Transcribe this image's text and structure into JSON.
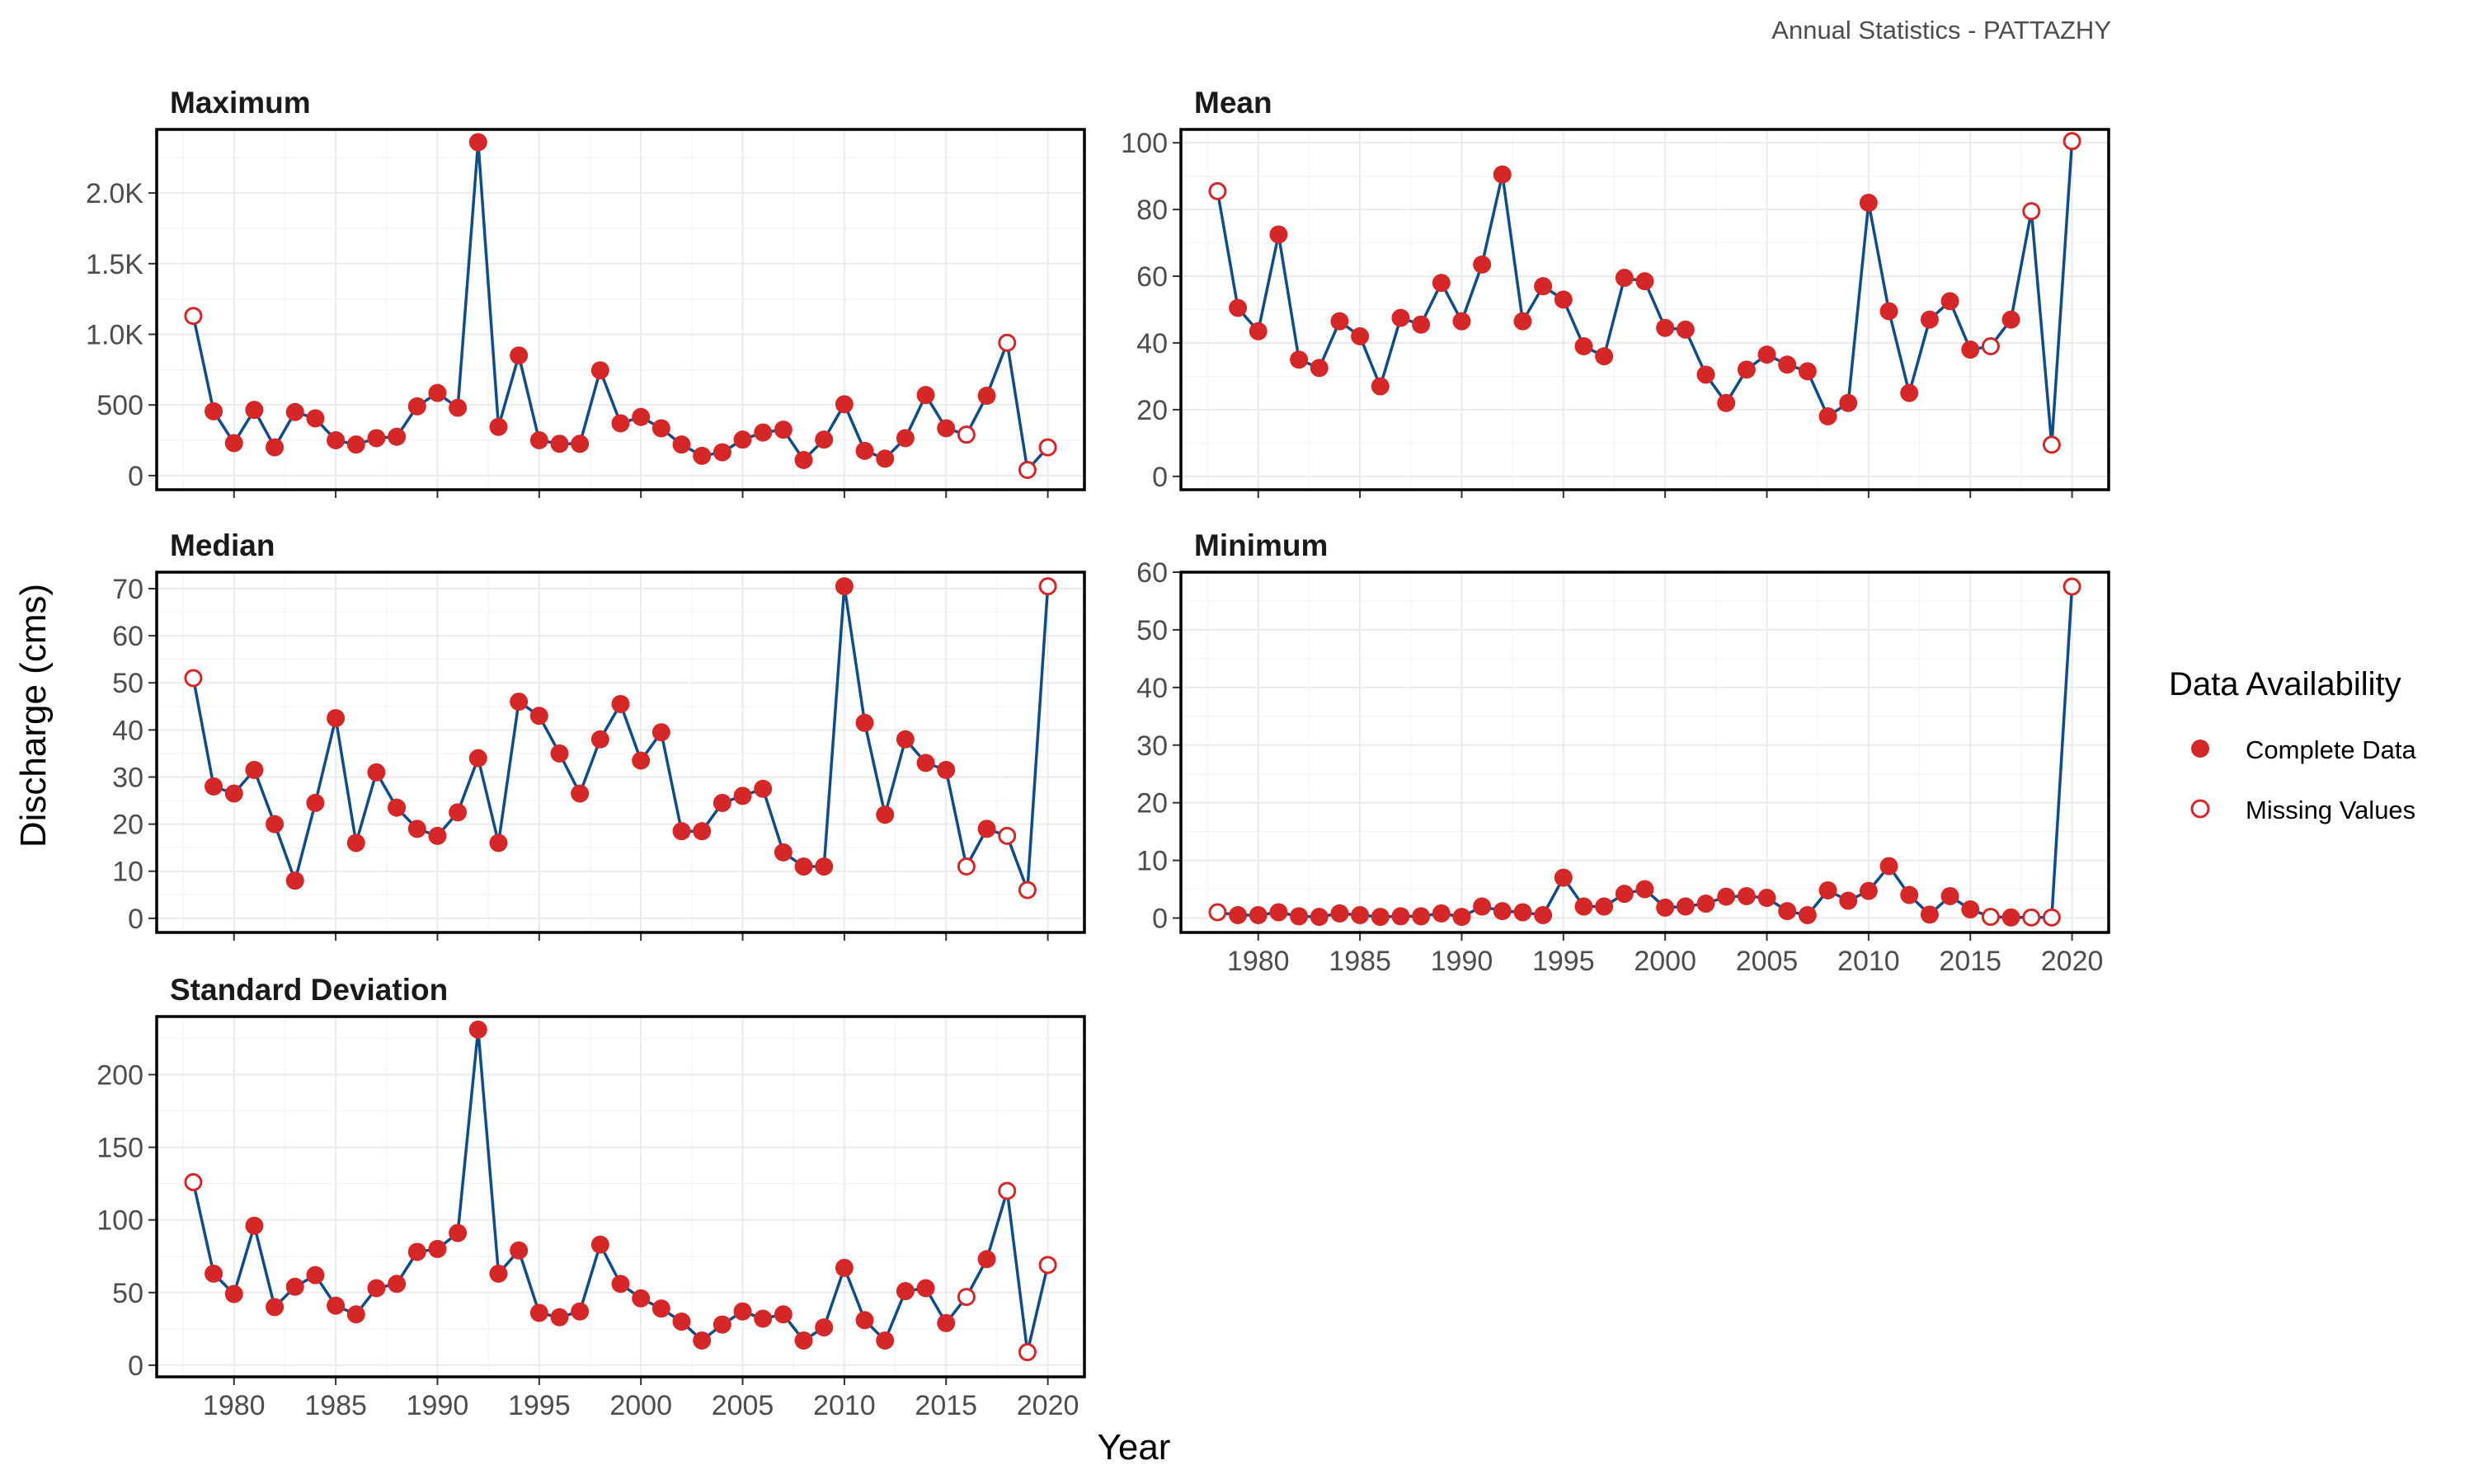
{
  "caption": "Annual Statistics - PATTAZHY",
  "axis": {
    "xlabel": "Year",
    "ylabel": "Discharge (cms)"
  },
  "legend": {
    "title": "Data Availability",
    "items": [
      {
        "label": "Complete Data",
        "key": "complete"
      },
      {
        "label": "Missing Values",
        "key": "missing"
      }
    ]
  },
  "colors": {
    "line": "#0f4c8a",
    "point": "#d62728",
    "panel_border": "#000000",
    "grid": "#ebebeb"
  },
  "chart_data": {
    "type": "line",
    "x_range": [
      1976.2,
      2021.8
    ],
    "x_ticks": [
      1980,
      1985,
      1990,
      1995,
      2000,
      2005,
      2010,
      2015,
      2020
    ],
    "years": [
      1978,
      1979,
      1980,
      1981,
      1982,
      1983,
      1984,
      1985,
      1986,
      1987,
      1988,
      1989,
      1990,
      1991,
      1992,
      1993,
      1994,
      1995,
      1996,
      1997,
      1998,
      1999,
      2000,
      2001,
      2002,
      2003,
      2004,
      2005,
      2006,
      2007,
      2008,
      2009,
      2010,
      2011,
      2012,
      2013,
      2014,
      2015,
      2016,
      2017,
      2018,
      2019,
      2020
    ],
    "missing_years": [
      1978,
      2016,
      2018,
      2019,
      2020
    ],
    "panels": [
      {
        "title": "Maximum",
        "ylim": [
          -100,
          2450
        ],
        "y_ticks": [
          0,
          500,
          1000,
          1500,
          2000
        ],
        "y_tick_labels": [
          "0",
          "500",
          "1.0K",
          "1.5K",
          "2.0K"
        ],
        "values": [
          1130,
          455,
          230,
          465,
          200,
          450,
          405,
          250,
          220,
          265,
          275,
          490,
          585,
          480,
          2360,
          345,
          850,
          250,
          225,
          225,
          745,
          370,
          415,
          335,
          220,
          140,
          165,
          255,
          305,
          325,
          110,
          255,
          505,
          175,
          120,
          265,
          570,
          335,
          290,
          565,
          940,
          40,
          200
        ]
      },
      {
        "title": "Mean",
        "ylim": [
          -4,
          104
        ],
        "y_ticks": [
          0,
          20,
          40,
          60,
          80,
          100
        ],
        "y_tick_labels": [
          "0",
          "20",
          "40",
          "60",
          "80",
          "100"
        ],
        "values": [
          85.5,
          50.5,
          43.5,
          72.5,
          35,
          32.5,
          46.5,
          42,
          27,
          47.5,
          45.5,
          58,
          46.5,
          63.5,
          90.5,
          46.5,
          57,
          53,
          39,
          36,
          59.5,
          58.5,
          44.5,
          44,
          30.5,
          22,
          32,
          36.5,
          33.5,
          31.5,
          18,
          22,
          82,
          49.5,
          25,
          47,
          52.5,
          38,
          39,
          47,
          79.5,
          9.5,
          100.5
        ]
      },
      {
        "title": "Median",
        "ylim": [
          -3,
          73.5
        ],
        "y_ticks": [
          0,
          10,
          20,
          30,
          40,
          50,
          60,
          70
        ],
        "y_tick_labels": [
          "0",
          "10",
          "20",
          "30",
          "40",
          "50",
          "60",
          "70"
        ],
        "values": [
          51,
          28,
          26.5,
          31.5,
          20,
          8,
          24.5,
          42.5,
          16,
          31,
          23.5,
          19,
          17.5,
          22.5,
          34,
          16,
          46,
          43,
          35,
          26.5,
          38,
          45.5,
          33.5,
          39.5,
          18.5,
          18.5,
          24.5,
          26,
          27.5,
          14,
          11,
          11,
          70.5,
          41.5,
          22,
          38,
          33,
          31.5,
          11,
          19,
          17.5,
          6,
          70.5
        ]
      },
      {
        "title": "Minimum",
        "ylim": [
          -2.5,
          60
        ],
        "y_ticks": [
          0,
          10,
          20,
          30,
          40,
          50,
          60
        ],
        "y_tick_labels": [
          "0",
          "10",
          "20",
          "30",
          "40",
          "50",
          "60"
        ],
        "values": [
          1,
          0.5,
          0.5,
          1,
          0.3,
          0.2,
          0.8,
          0.5,
          0.2,
          0.3,
          0.3,
          0.8,
          0.2,
          2,
          1.2,
          1,
          0.5,
          7,
          2,
          2,
          4.2,
          5,
          1.8,
          2,
          2.5,
          3.7,
          3.8,
          3.5,
          1.2,
          0.5,
          4.8,
          3,
          4.7,
          9,
          4,
          0.6,
          3.8,
          1.5,
          0.2,
          0.1,
          0.1,
          0.1,
          57.5
        ]
      },
      {
        "title": "Standard Deviation",
        "ylim": [
          -8,
          240
        ],
        "y_ticks": [
          0,
          50,
          100,
          150,
          200
        ],
        "y_tick_labels": [
          "0",
          "50",
          "100",
          "150",
          "200"
        ],
        "values": [
          126,
          63,
          49,
          96,
          40,
          54,
          62,
          41,
          35,
          53,
          56,
          78,
          80,
          91,
          231,
          63,
          79,
          36,
          33,
          37,
          83,
          56,
          46,
          39,
          30,
          17,
          28,
          37,
          32,
          35,
          17,
          26,
          67,
          31,
          17,
          51,
          53,
          29,
          47,
          73,
          120,
          9,
          69
        ]
      }
    ]
  }
}
